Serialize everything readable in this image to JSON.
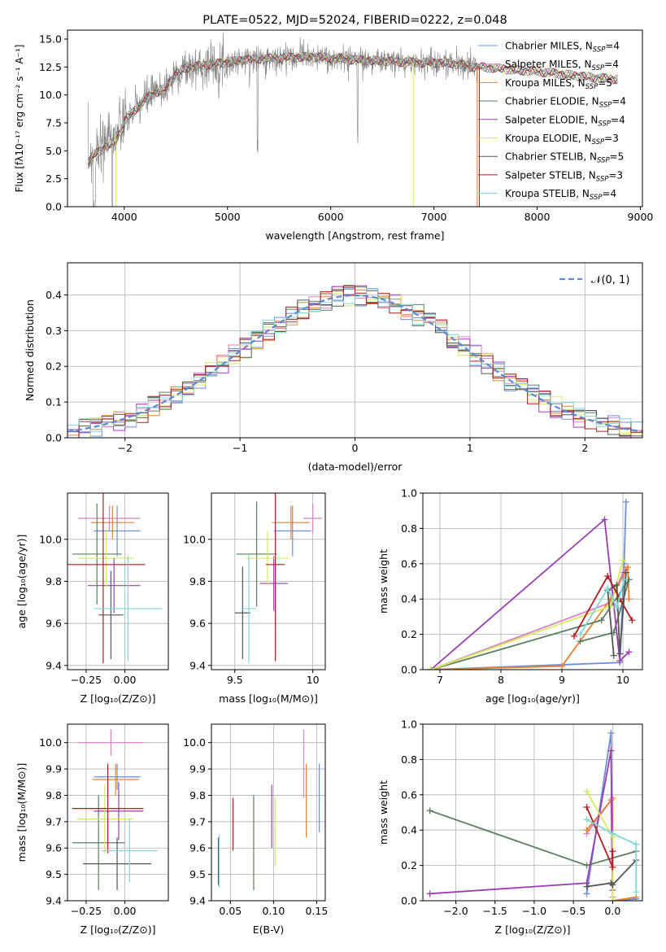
{
  "colors": {
    "chabrier_miles": "#6a8fd8",
    "salpeter_miles": "#d982c6",
    "kroupa_miles": "#e6822e",
    "chabrier_elodie": "#5a7f5e",
    "salpeter_elodie": "#9b3db3",
    "kroupa_elodie": "#d6ea5a",
    "chabrier_stelib": "#555555",
    "salpeter_stelib": "#b01c1c",
    "kroupa_stelib": "#7fd6d6",
    "spectrum_data": "#808080"
  },
  "chart_data": [
    {
      "id": "spectrum",
      "type": "line",
      "title": "PLATE=0522, MJD=52024, FIBERID=0222, z=0.048",
      "xlabel": "wavelength [Angstrom, rest frame]",
      "ylabel": "Flux [fλ10⁻¹⁷ erg cm⁻² s⁻¹ A⁻¹]",
      "xlim": [
        3450,
        9020
      ],
      "ylim": [
        0,
        15.8
      ],
      "xticks": [
        4000,
        5000,
        6000,
        7000,
        8000,
        9000
      ],
      "yticks": [
        0.0,
        2.5,
        5.0,
        7.5,
        10.0,
        12.5,
        15.0
      ],
      "continuum": {
        "x": [
          3650,
          3700,
          3800,
          3900,
          4000,
          4100,
          4200,
          4300,
          4400,
          4500,
          4600,
          4800,
          5000,
          5200,
          5500,
          5800,
          6000,
          6300,
          6600,
          6800,
          7000,
          7200,
          7400,
          7600,
          7800,
          8000,
          8200,
          8400,
          8600,
          8800
        ],
        "y": [
          4.3,
          5.0,
          5.6,
          6.2,
          7.6,
          8.6,
          9.6,
          10.2,
          10.6,
          11.9,
          12.4,
          12.7,
          12.9,
          13.2,
          13.3,
          13.4,
          13.3,
          13.1,
          13.0,
          12.9,
          12.9,
          12.8,
          12.5,
          12.4,
          12.2,
          12.1,
          11.9,
          11.7,
          11.5,
          11.4
        ]
      },
      "legend": [
        {
          "label": "Chabrier MILES, N",
          "sub": "SSP",
          "tail": "=4",
          "color_key": "chabrier_miles"
        },
        {
          "label": "Salpeter MILES, N",
          "sub": "SSP",
          "tail": "=4",
          "color_key": "salpeter_miles"
        },
        {
          "label": "Kroupa MILES, N",
          "sub": "SSP",
          "tail": "=5",
          "color_key": "kroupa_miles"
        },
        {
          "label": "Chabrier ELODIE, N",
          "sub": "SSP",
          "tail": "=4",
          "color_key": "chabrier_elodie"
        },
        {
          "label": "Salpeter ELODIE, N",
          "sub": "SSP",
          "tail": "=4",
          "color_key": "salpeter_elodie"
        },
        {
          "label": "Kroupa ELODIE, N",
          "sub": "SSP",
          "tail": "=3",
          "color_key": "kroupa_elodie"
        },
        {
          "label": "Chabrier STELIB, N",
          "sub": "SSP",
          "tail": "=5",
          "color_key": "chabrier_stelib"
        },
        {
          "label": "Salpeter STELIB, N",
          "sub": "SSP",
          "tail": "=3",
          "color_key": "salpeter_stelib"
        },
        {
          "label": "Kroupa STELIB, N",
          "sub": "SSP",
          "tail": "=4",
          "color_key": "kroupa_stelib"
        }
      ]
    },
    {
      "id": "residuals",
      "type": "histogram",
      "xlabel": "(data-model)/error",
      "ylabel": "Normed distribution",
      "xlim": [
        -2.5,
        2.5
      ],
      "ylim": [
        0,
        0.49
      ],
      "xticks": [
        -2,
        -1,
        0,
        1,
        2
      ],
      "yticks": [
        0.0,
        0.1,
        0.2,
        0.3,
        0.4
      ],
      "bin_width": 0.1,
      "legend": "𝒩(0, 1)",
      "gaussian": {
        "mu": 0,
        "sigma": 1,
        "color": "#5b8ad6"
      }
    },
    {
      "id": "age_vs_z",
      "type": "errorbar",
      "xlabel": "Z [log₁₀(Z/Z⊙)]",
      "ylabel": "age  [log₁₀(age/yr)]",
      "xlim": [
        -0.37,
        0.28
      ],
      "ylim": [
        9.38,
        10.22
      ],
      "xticks": [
        -0.25,
        0.0
      ],
      "xticklabels": [
        "−0.25",
        "0.00"
      ],
      "yticks": [
        9.4,
        9.6,
        9.8,
        10.0
      ],
      "points": [
        {
          "k": "chabrier_miles",
          "x": -0.05,
          "xerr": 0.15,
          "y": 10.04,
          "yerr": 0.12
        },
        {
          "k": "salpeter_miles",
          "x": -0.1,
          "xerr": 0.2,
          "y": 10.1,
          "yerr": 0.06
        },
        {
          "k": "kroupa_miles",
          "x": -0.08,
          "xerr": 0.14,
          "y": 10.08,
          "yerr": 0.08
        },
        {
          "k": "chabrier_elodie",
          "x": -0.18,
          "xerr": 0.16,
          "y": 9.93,
          "yerr": 0.24
        },
        {
          "k": "salpeter_elodie",
          "x": -0.07,
          "xerr": 0.17,
          "y": 9.78,
          "yerr": 0.13
        },
        {
          "k": "kroupa_elodie",
          "x": -0.12,
          "xerr": 0.18,
          "y": 9.91,
          "yerr": 0.14
        },
        {
          "k": "chabrier_stelib",
          "x": -0.09,
          "xerr": 0.08,
          "y": 9.64,
          "yerr": 0.21
        },
        {
          "k": "salpeter_stelib",
          "x": -0.14,
          "xerr": 0.27,
          "y": 9.88,
          "yerr": 0.47
        },
        {
          "k": "kroupa_stelib",
          "x": 0.02,
          "xerr": 0.22,
          "y": 9.67,
          "yerr": 0.25
        }
      ]
    },
    {
      "id": "age_vs_mass",
      "type": "errorbar",
      "xlabel": "mass [log₁₀(M/M⊙)]",
      "ylabel": "",
      "xlim": [
        9.35,
        10.08
      ],
      "ylim": [
        9.38,
        10.22
      ],
      "xticks": [
        9.5,
        10.0
      ],
      "yticks": [
        9.4,
        9.6,
        9.8,
        10.0
      ],
      "points": [
        {
          "k": "chabrier_miles",
          "x": 9.87,
          "xerr": 0.12,
          "y": 10.04,
          "yerr": 0.12
        },
        {
          "k": "salpeter_miles",
          "x": 10.0,
          "xerr": 0.06,
          "y": 10.1,
          "yerr": 0.07
        },
        {
          "k": "kroupa_miles",
          "x": 9.86,
          "xerr": 0.12,
          "y": 10.08,
          "yerr": 0.08
        },
        {
          "k": "chabrier_elodie",
          "x": 9.64,
          "xerr": 0.13,
          "y": 9.93,
          "yerr": 0.25
        },
        {
          "k": "salpeter_elodie",
          "x": 9.75,
          "xerr": 0.09,
          "y": 9.79,
          "yerr": 0.13
        },
        {
          "k": "kroupa_elodie",
          "x": 9.71,
          "xerr": 0.14,
          "y": 9.91,
          "yerr": 0.13
        },
        {
          "k": "chabrier_stelib",
          "x": 9.55,
          "xerr": 0.05,
          "y": 9.65,
          "yerr": 0.22
        },
        {
          "k": "salpeter_stelib",
          "x": 9.76,
          "xerr": 0.06,
          "y": 9.88,
          "yerr": 0.46
        },
        {
          "k": "kroupa_stelib",
          "x": 9.59,
          "xerr": 0.05,
          "y": 9.67,
          "yerr": 0.26
        }
      ]
    },
    {
      "id": "weight_vs_age",
      "type": "line",
      "xlabel": "age  [log₁₀(age/yr)]",
      "ylabel": "mass weight",
      "xlim": [
        6.72,
        10.32
      ],
      "ylim": [
        0,
        1
      ],
      "xticks": [
        7,
        8,
        9,
        10
      ],
      "yticks": [
        0.0,
        0.2,
        0.4,
        0.6,
        0.8,
        1.0
      ],
      "series": [
        {
          "k": "chabrier_miles",
          "x": [
            6.85,
            9.95,
            10.02,
            10.05
          ],
          "y": [
            0.0,
            0.04,
            0.6,
            0.95
          ]
        },
        {
          "k": "salpeter_miles",
          "x": [
            6.85,
            9.8,
            10.0,
            10.05
          ],
          "y": [
            0.0,
            0.38,
            0.55,
            0.57
          ]
        },
        {
          "k": "kroupa_miles",
          "x": [
            6.85,
            9.0,
            9.8,
            10.08,
            10.1
          ],
          "y": [
            0.0,
            0.02,
            0.4,
            0.58,
            0.4
          ]
        },
        {
          "k": "chabrier_elodie",
          "x": [
            6.85,
            9.65,
            10.1,
            9.85,
            9.3
          ],
          "y": [
            0.0,
            0.28,
            0.51,
            0.21,
            0.16
          ]
        },
        {
          "k": "salpeter_elodie",
          "x": [
            6.85,
            9.7,
            9.95,
            10.1
          ],
          "y": [
            0.0,
            0.85,
            0.05,
            0.1
          ]
        },
        {
          "k": "kroupa_elodie",
          "x": [
            6.85,
            9.8,
            10.0
          ],
          "y": [
            0.0,
            0.36,
            0.62
          ]
        },
        {
          "k": "chabrier_stelib",
          "x": [
            9.85,
            9.75,
            9.9,
            9.95,
            10.05
          ],
          "y": [
            0.08,
            0.45,
            0.48,
            0.09,
            0.55
          ]
        },
        {
          "k": "salpeter_stelib",
          "x": [
            9.2,
            9.75,
            9.95,
            10.15
          ],
          "y": [
            0.19,
            0.53,
            0.4,
            0.28
          ]
        },
        {
          "k": "kroupa_stelib",
          "x": [
            9.3,
            9.75,
            9.9,
            10.02
          ],
          "y": [
            0.2,
            0.46,
            0.35,
            0.51
          ]
        }
      ]
    },
    {
      "id": "mass_vs_z",
      "type": "errorbar",
      "xlabel": "Z [log₁₀(Z/Z⊙)]",
      "ylabel": "mass [log₁₀(M/M⊙)]",
      "xlim": [
        -0.37,
        0.28
      ],
      "ylim": [
        9.4,
        10.07
      ],
      "xticks": [
        -0.25,
        0.0
      ],
      "xticklabels": [
        "−0.25",
        "0.00"
      ],
      "yticks": [
        9.4,
        9.5,
        9.6,
        9.7,
        9.8,
        9.9,
        10.0
      ],
      "points": [
        {
          "k": "chabrier_miles",
          "x": -0.05,
          "xerr": 0.15,
          "y": 9.87,
          "yerr": 0.05
        },
        {
          "k": "salpeter_miles",
          "x": -0.09,
          "xerr": 0.21,
          "y": 10.0,
          "yerr": 0.05
        },
        {
          "k": "kroupa_miles",
          "x": -0.06,
          "xerr": 0.15,
          "y": 9.86,
          "yerr": 0.06
        },
        {
          "k": "chabrier_elodie",
          "x": -0.17,
          "xerr": 0.17,
          "y": 9.62,
          "yerr": 0.18
        },
        {
          "k": "salpeter_elodie",
          "x": -0.04,
          "xerr": 0.16,
          "y": 9.74,
          "yerr": 0.11
        },
        {
          "k": "kroupa_elodie",
          "x": -0.13,
          "xerr": 0.18,
          "y": 9.71,
          "yerr": 0.13
        },
        {
          "k": "chabrier_stelib",
          "x": -0.05,
          "xerr": 0.22,
          "y": 9.54,
          "yerr": 0.1
        },
        {
          "k": "salpeter_stelib",
          "x": -0.11,
          "xerr": 0.23,
          "y": 9.75,
          "yerr": 0.17
        },
        {
          "k": "kroupa_stelib",
          "x": 0.03,
          "xerr": 0.18,
          "y": 9.59,
          "yerr": 0.12
        }
      ]
    },
    {
      "id": "mass_vs_ebv",
      "type": "errorbar",
      "xlabel": "E(B-V)",
      "ylabel": "",
      "xlim": [
        0.028,
        0.16
      ],
      "ylim": [
        9.4,
        10.07
      ],
      "xticks": [
        0.05,
        0.1,
        0.15
      ],
      "xticklabels": [
        "0.05",
        "0.10",
        "0.15"
      ],
      "yticks": [
        9.4,
        9.5,
        9.6,
        9.7,
        9.8,
        9.9,
        10.0
      ],
      "points": [
        {
          "k": "chabrier_miles",
          "x": 0.153,
          "xerr": 0,
          "y": 9.79,
          "yerr": 0.13
        },
        {
          "k": "salpeter_miles",
          "x": 0.135,
          "xerr": 0,
          "y": 9.92,
          "yerr": 0.13
        },
        {
          "k": "kroupa_miles",
          "x": 0.138,
          "xerr": 0,
          "y": 9.78,
          "yerr": 0.14
        },
        {
          "k": "chabrier_elodie",
          "x": 0.077,
          "xerr": 0,
          "y": 9.62,
          "yerr": 0.18
        },
        {
          "k": "salpeter_elodie",
          "x": 0.098,
          "xerr": 0,
          "y": 9.72,
          "yerr": 0.12
        },
        {
          "k": "kroupa_elodie",
          "x": 0.102,
          "xerr": 0,
          "y": 9.66,
          "yerr": 0.13
        },
        {
          "k": "chabrier_stelib",
          "x": 0.036,
          "xerr": 0,
          "y": 9.55,
          "yerr": 0.09
        },
        {
          "k": "salpeter_stelib",
          "x": 0.053,
          "xerr": 0,
          "y": 9.69,
          "yerr": 0.1
        },
        {
          "k": "kroupa_stelib",
          "x": 0.037,
          "xerr": 0,
          "y": 9.55,
          "yerr": 0.1
        }
      ]
    },
    {
      "id": "weight_vs_z",
      "type": "line",
      "xlabel": "Z [log₁₀(Z/Z⊙)]",
      "ylabel": "mass weight",
      "xlim": [
        -2.42,
        0.38
      ],
      "ylim": [
        0,
        1
      ],
      "xticks": [
        -2.0,
        -1.5,
        -1.0,
        -0.5,
        0.0
      ],
      "xticklabels": [
        "−2.0",
        "−1.5",
        "−1.0",
        "−0.5",
        "0.0"
      ],
      "yticks": [
        0.0,
        0.2,
        0.4,
        0.6,
        0.8,
        1.0
      ],
      "series": [
        {
          "k": "chabrier_miles",
          "x": [
            -0.33,
            -0.02,
            0.0,
            0.3
          ],
          "y": [
            0.04,
            0.95,
            0.0,
            0.01
          ]
        },
        {
          "k": "salpeter_miles",
          "x": [
            -0.33,
            -0.02,
            0.0
          ],
          "y": [
            0.38,
            0.57,
            0.02
          ]
        },
        {
          "k": "kroupa_miles",
          "x": [
            -0.33,
            0.0,
            0.0,
            0.3
          ],
          "y": [
            0.4,
            0.58,
            0.0,
            0.02
          ]
        },
        {
          "k": "chabrier_elodie",
          "x": [
            -2.33,
            -0.33,
            0.3
          ],
          "y": [
            0.51,
            0.2,
            0.28
          ]
        },
        {
          "k": "salpeter_elodie",
          "x": [
            -2.33,
            -0.33,
            -0.02,
            0.0
          ],
          "y": [
            0.04,
            0.1,
            0.85,
            0.06
          ]
        },
        {
          "k": "kroupa_elodie",
          "x": [
            -0.33,
            0.0,
            0.0
          ],
          "y": [
            0.62,
            0.36,
            0.0
          ]
        },
        {
          "k": "chabrier_stelib",
          "x": [
            -0.33,
            -0.02,
            0.0,
            0.3
          ],
          "y": [
            0.08,
            0.1,
            0.09,
            0.23
          ]
        },
        {
          "k": "salpeter_stelib",
          "x": [
            -0.33,
            0.0,
            0.0
          ],
          "y": [
            0.53,
            0.19,
            0.28
          ]
        },
        {
          "k": "kroupa_stelib",
          "x": [
            -0.33,
            0.0,
            0.3,
            0.3
          ],
          "y": [
            0.46,
            0.38,
            0.32,
            0.05
          ]
        }
      ]
    }
  ]
}
